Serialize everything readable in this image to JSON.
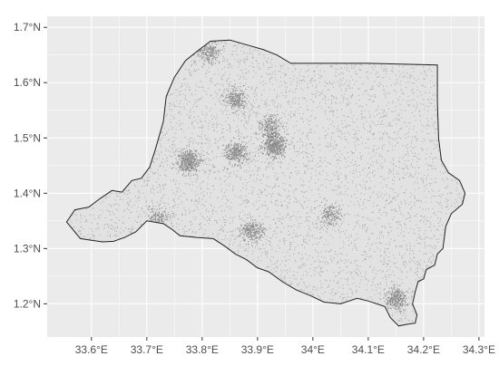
{
  "chart_data": {
    "type": "map",
    "title": "",
    "xlabel": "",
    "ylabel": "",
    "xlim": [
      33.52,
      34.31
    ],
    "ylim": [
      1.14,
      1.72
    ],
    "x_ticks": [
      33.6,
      33.7,
      33.8,
      33.9,
      34.0,
      34.1,
      34.2,
      34.3
    ],
    "x_tick_labels": [
      "33.6°E",
      "33.7°E",
      "33.8°E",
      "33.9°E",
      "34°E",
      "34.1°E",
      "34.2°E",
      "34.3°E"
    ],
    "y_ticks": [
      1.2,
      1.3,
      1.4,
      1.5,
      1.6,
      1.7
    ],
    "y_tick_labels": [
      "1.2°N",
      "1.3°N",
      "1.4°N",
      "1.5°N",
      "1.6°N",
      "1.7°N"
    ],
    "grid": true,
    "panel_background": "#ebebeb",
    "grid_color": "#ffffff",
    "boundary_color": "#222222",
    "point_color": "#000000",
    "boundary": [
      [
        33.555,
        1.348
      ],
      [
        33.57,
        1.37
      ],
      [
        33.595,
        1.375
      ],
      [
        33.615,
        1.39
      ],
      [
        33.637,
        1.405
      ],
      [
        33.655,
        1.402
      ],
      [
        33.673,
        1.423
      ],
      [
        33.69,
        1.427
      ],
      [
        33.705,
        1.447
      ],
      [
        33.715,
        1.478
      ],
      [
        33.73,
        1.53
      ],
      [
        33.735,
        1.575
      ],
      [
        33.75,
        1.61
      ],
      [
        33.77,
        1.64
      ],
      [
        33.795,
        1.66
      ],
      [
        33.815,
        1.675
      ],
      [
        33.85,
        1.677
      ],
      [
        33.885,
        1.667
      ],
      [
        33.91,
        1.66
      ],
      [
        33.935,
        1.65
      ],
      [
        33.96,
        1.635
      ],
      [
        34.0,
        1.635
      ],
      [
        34.1,
        1.635
      ],
      [
        34.225,
        1.632
      ],
      [
        34.225,
        1.565
      ],
      [
        34.227,
        1.5
      ],
      [
        34.232,
        1.46
      ],
      [
        34.245,
        1.437
      ],
      [
        34.265,
        1.423
      ],
      [
        34.275,
        1.4
      ],
      [
        34.27,
        1.38
      ],
      [
        34.25,
        1.363
      ],
      [
        34.24,
        1.34
      ],
      [
        34.235,
        1.3
      ],
      [
        34.225,
        1.29
      ],
      [
        34.22,
        1.27
      ],
      [
        34.205,
        1.262
      ],
      [
        34.2,
        1.245
      ],
      [
        34.19,
        1.24
      ],
      [
        34.185,
        1.222
      ],
      [
        34.18,
        1.2
      ],
      [
        34.188,
        1.18
      ],
      [
        34.185,
        1.165
      ],
      [
        34.17,
        1.163
      ],
      [
        34.155,
        1.16
      ],
      [
        34.14,
        1.175
      ],
      [
        34.13,
        1.195
      ],
      [
        34.1,
        1.205
      ],
      [
        34.08,
        1.21
      ],
      [
        34.05,
        1.2
      ],
      [
        34.02,
        1.203
      ],
      [
        33.995,
        1.215
      ],
      [
        33.97,
        1.225
      ],
      [
        33.945,
        1.24
      ],
      [
        33.92,
        1.258
      ],
      [
        33.9,
        1.265
      ],
      [
        33.88,
        1.28
      ],
      [
        33.86,
        1.29
      ],
      [
        33.84,
        1.305
      ],
      [
        33.82,
        1.318
      ],
      [
        33.79,
        1.32
      ],
      [
        33.76,
        1.323
      ],
      [
        33.745,
        1.335
      ],
      [
        33.73,
        1.345
      ],
      [
        33.7,
        1.35
      ],
      [
        33.68,
        1.33
      ],
      [
        33.66,
        1.32
      ],
      [
        33.64,
        1.313
      ],
      [
        33.62,
        1.312
      ],
      [
        33.6,
        1.315
      ],
      [
        33.58,
        1.318
      ],
      [
        33.57,
        1.33
      ],
      [
        33.555,
        1.348
      ]
    ],
    "hotspots": [
      {
        "lon": 33.93,
        "lat": 1.487,
        "intensity": 1.0
      },
      {
        "lon": 33.775,
        "lat": 1.457,
        "intensity": 0.9
      },
      {
        "lon": 33.86,
        "lat": 1.473,
        "intensity": 0.6
      },
      {
        "lon": 33.86,
        "lat": 1.57,
        "intensity": 0.5
      },
      {
        "lon": 33.92,
        "lat": 1.52,
        "intensity": 0.4
      },
      {
        "lon": 33.89,
        "lat": 1.33,
        "intensity": 0.5
      },
      {
        "lon": 34.15,
        "lat": 1.21,
        "intensity": 0.6
      },
      {
        "lon": 33.81,
        "lat": 1.655,
        "intensity": 0.4
      },
      {
        "lon": 33.72,
        "lat": 1.355,
        "intensity": 0.3
      },
      {
        "lon": 34.03,
        "lat": 1.36,
        "intensity": 0.3
      }
    ]
  }
}
